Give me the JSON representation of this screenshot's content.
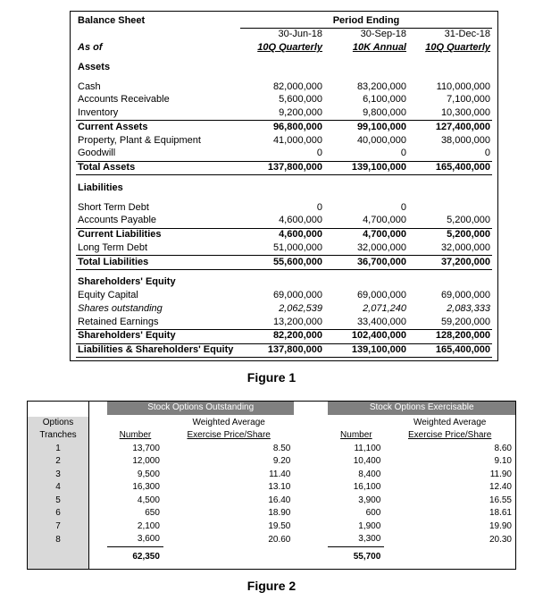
{
  "figure1": {
    "title": "Balance Sheet",
    "asof": "As of",
    "period_ending": "Period Ending",
    "col_dates": [
      "30-Jun-18",
      "30-Sep-18",
      "31-Dec-18"
    ],
    "col_types": [
      "10Q Quarterly",
      "10K Annual",
      "10Q Quarterly"
    ],
    "sections": {
      "assets_hdr": "Assets",
      "cash": {
        "l": "Cash",
        "v": [
          "82,000,000",
          "83,200,000",
          "110,000,000"
        ]
      },
      "ar": {
        "l": "Accounts Receivable",
        "v": [
          "5,600,000",
          "6,100,000",
          "7,100,000"
        ]
      },
      "inv": {
        "l": "Inventory",
        "v": [
          "9,200,000",
          "9,800,000",
          "10,300,000"
        ]
      },
      "curr_assets": {
        "l": "Current Assets",
        "v": [
          "96,800,000",
          "99,100,000",
          "127,400,000"
        ]
      },
      "ppe": {
        "l": "Property, Plant & Equipment",
        "v": [
          "41,000,000",
          "40,000,000",
          "38,000,000"
        ]
      },
      "goodwill": {
        "l": "Goodwill",
        "v": [
          "0",
          "0",
          "0"
        ]
      },
      "tot_assets": {
        "l": "Total Assets",
        "v": [
          "137,800,000",
          "139,100,000",
          "165,400,000"
        ]
      },
      "liab_hdr": "Liabilities",
      "std": {
        "l": "Short Term Debt",
        "v": [
          "0",
          "0",
          ""
        ]
      },
      "ap": {
        "l": "Accounts Payable",
        "v": [
          "4,600,000",
          "4,700,000",
          "5,200,000"
        ]
      },
      "curr_liab": {
        "l": "Current Liabilities",
        "v": [
          "4,600,000",
          "4,700,000",
          "5,200,000"
        ]
      },
      "ltd": {
        "l": "Long Term Debt",
        "v": [
          "51,000,000",
          "32,000,000",
          "32,000,000"
        ]
      },
      "tot_liab": {
        "l": "Total Liabilities",
        "v": [
          "55,600,000",
          "36,700,000",
          "37,200,000"
        ]
      },
      "eq_hdr": "Shareholders' Equity",
      "eqcap": {
        "l": "Equity Capital",
        "v": [
          "69,000,000",
          "69,000,000",
          "69,000,000"
        ]
      },
      "shares": {
        "l": "Shares outstanding",
        "v": [
          "2,062,539",
          "2,071,240",
          "2,083,333"
        ]
      },
      "re": {
        "l": "Retained Earnings",
        "v": [
          "13,200,000",
          "33,400,000",
          "59,200,000"
        ]
      },
      "tot_eq": {
        "l": "Shareholders' Equity",
        "v": [
          "82,200,000",
          "102,400,000",
          "128,200,000"
        ]
      },
      "lse": {
        "l": "Liabilities & Shareholders' Equity",
        "v": [
          "137,800,000",
          "139,100,000",
          "165,400,000"
        ]
      }
    },
    "caption": "Figure 1"
  },
  "figure2": {
    "row_header1": "Options",
    "row_header2": "Tranches",
    "group_out": "Stock Options Outstanding",
    "group_ex": "Stock Options Exercisable",
    "col_number": "Number",
    "col_wap1": "Weighted Average",
    "col_wap2": "Exercise Price/Share",
    "rows": [
      {
        "t": "1",
        "n1": "13,700",
        "p1": "8.50",
        "n2": "11,100",
        "p2": "8.60"
      },
      {
        "t": "2",
        "n1": "12,000",
        "p1": "9.20",
        "n2": "10,400",
        "p2": "9.10"
      },
      {
        "t": "3",
        "n1": "9,500",
        "p1": "11.40",
        "n2": "8,400",
        "p2": "11.90"
      },
      {
        "t": "4",
        "n1": "16,300",
        "p1": "13.10",
        "n2": "16,100",
        "p2": "12.40"
      },
      {
        "t": "5",
        "n1": "4,500",
        "p1": "16.40",
        "n2": "3,900",
        "p2": "16.55"
      },
      {
        "t": "6",
        "n1": "650",
        "p1": "18.90",
        "n2": "600",
        "p2": "18.61"
      },
      {
        "t": "7",
        "n1": "2,100",
        "p1": "19.50",
        "n2": "1,900",
        "p2": "19.90"
      },
      {
        "t": "8",
        "n1": "3,600",
        "p1": "20.60",
        "n2": "3,300",
        "p2": "20.30"
      }
    ],
    "tot1": "62,350",
    "tot2": "55,700",
    "caption": "Figure 2"
  }
}
